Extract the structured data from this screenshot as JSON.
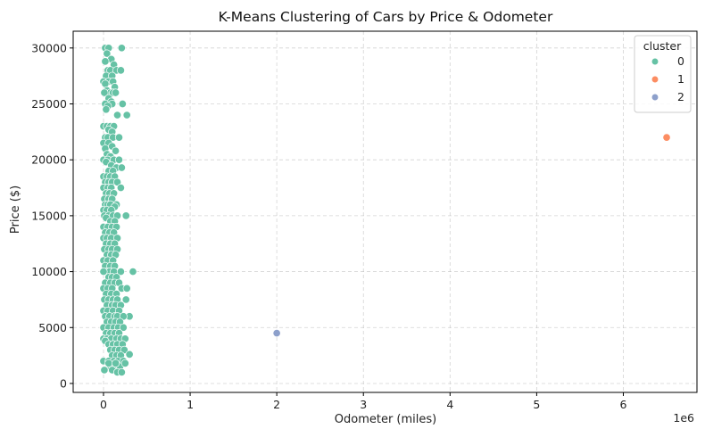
{
  "chart_data": {
    "type": "scatter",
    "title": "K-Means Clustering of Cars by Price & Odometer",
    "xlabel": "Odometer (miles)",
    "ylabel": "Price ($)",
    "x_offset_label": "1e6",
    "x_scale": 1000000,
    "xlim": [
      -350000,
      6850000
    ],
    "ylim": [
      -800,
      31500
    ],
    "xticks": [
      0,
      1000000,
      2000000,
      3000000,
      4000000,
      5000000,
      6000000
    ],
    "xtick_labels": [
      "0",
      "1",
      "2",
      "3",
      "4",
      "5",
      "6"
    ],
    "yticks": [
      0,
      5000,
      10000,
      15000,
      20000,
      25000,
      30000
    ],
    "ytick_labels": [
      "0",
      "5000",
      "10000",
      "15000",
      "20000",
      "25000",
      "30000"
    ],
    "grid": true,
    "legend": {
      "title": "cluster",
      "placement": "top-right",
      "entries": [
        {
          "label": "0",
          "color": "#66c2a5"
        },
        {
          "label": "1",
          "color": "#fc8d62"
        },
        {
          "label": "2",
          "color": "#8da0cb"
        }
      ]
    },
    "series": [
      {
        "name": "0",
        "color": "#66c2a5",
        "points": [
          [
            20000,
            30000
          ],
          [
            60000,
            30000
          ],
          [
            210000,
            30000
          ],
          [
            40000,
            29500
          ],
          [
            90000,
            29000
          ],
          [
            20000,
            28800
          ],
          [
            120000,
            28500
          ],
          [
            50000,
            28000
          ],
          [
            80000,
            28000
          ],
          [
            150000,
            28000
          ],
          [
            200000,
            28000
          ],
          [
            30000,
            27500
          ],
          [
            100000,
            27500
          ],
          [
            0,
            27000
          ],
          [
            60000,
            27000
          ],
          [
            110000,
            27000
          ],
          [
            20000,
            26800
          ],
          [
            130000,
            26500
          ],
          [
            40000,
            26200
          ],
          [
            80000,
            26000
          ],
          [
            110000,
            26000
          ],
          [
            140000,
            26000
          ],
          [
            10000,
            26000
          ],
          [
            60000,
            25500
          ],
          [
            90000,
            25200
          ],
          [
            20000,
            25000
          ],
          [
            100000,
            25000
          ],
          [
            50000,
            24800
          ],
          [
            160000,
            24000
          ],
          [
            270000,
            24000
          ],
          [
            220000,
            25000
          ],
          [
            30000,
            24500
          ],
          [
            0,
            23000
          ],
          [
            40000,
            23000
          ],
          [
            80000,
            23000
          ],
          [
            120000,
            23000
          ],
          [
            60000,
            22700
          ],
          [
            100000,
            22500
          ],
          [
            20000,
            22000
          ],
          [
            50000,
            22000
          ],
          [
            110000,
            22000
          ],
          [
            180000,
            22000
          ],
          [
            0,
            21500
          ],
          [
            60000,
            21500
          ],
          [
            20000,
            21000
          ],
          [
            100000,
            21200
          ],
          [
            140000,
            20800
          ],
          [
            40000,
            20500
          ],
          [
            80000,
            20300
          ],
          [
            0,
            20000
          ],
          [
            50000,
            20000
          ],
          [
            120000,
            20000
          ],
          [
            180000,
            20000
          ],
          [
            30000,
            19800
          ],
          [
            90000,
            19500
          ],
          [
            150000,
            19300
          ],
          [
            210000,
            19300
          ],
          [
            60000,
            19000
          ],
          [
            110000,
            19000
          ],
          [
            0,
            18500
          ],
          [
            40000,
            18500
          ],
          [
            80000,
            18500
          ],
          [
            130000,
            18500
          ],
          [
            20000,
            18000
          ],
          [
            60000,
            18000
          ],
          [
            100000,
            18000
          ],
          [
            160000,
            18000
          ],
          [
            0,
            17500
          ],
          [
            50000,
            17500
          ],
          [
            90000,
            17500
          ],
          [
            200000,
            17500
          ],
          [
            30000,
            17000
          ],
          [
            70000,
            17000
          ],
          [
            120000,
            17000
          ],
          [
            10000,
            16500
          ],
          [
            60000,
            16500
          ],
          [
            100000,
            16500
          ],
          [
            150000,
            16000
          ],
          [
            20000,
            16000
          ],
          [
            50000,
            16000
          ],
          [
            80000,
            16000
          ],
          [
            130000,
            15800
          ],
          [
            0,
            15500
          ],
          [
            40000,
            15500
          ],
          [
            90000,
            15500
          ],
          [
            10000,
            15000
          ],
          [
            60000,
            15000
          ],
          [
            110000,
            15000
          ],
          [
            160000,
            15000
          ],
          [
            260000,
            15000
          ],
          [
            30000,
            14800
          ],
          [
            80000,
            14500
          ],
          [
            130000,
            14500
          ],
          [
            0,
            14000
          ],
          [
            50000,
            14000
          ],
          [
            100000,
            14000
          ],
          [
            150000,
            14000
          ],
          [
            20000,
            13500
          ],
          [
            70000,
            13500
          ],
          [
            120000,
            13500
          ],
          [
            0,
            13000
          ],
          [
            40000,
            13000
          ],
          [
            90000,
            13000
          ],
          [
            160000,
            13000
          ],
          [
            30000,
            12500
          ],
          [
            80000,
            12500
          ],
          [
            130000,
            12500
          ],
          [
            10000,
            12000
          ],
          [
            60000,
            12000
          ],
          [
            100000,
            12000
          ],
          [
            160000,
            12000
          ],
          [
            40000,
            11500
          ],
          [
            90000,
            11500
          ],
          [
            140000,
            11500
          ],
          [
            0,
            11000
          ],
          [
            50000,
            11000
          ],
          [
            110000,
            11000
          ],
          [
            20000,
            10500
          ],
          [
            80000,
            10500
          ],
          [
            130000,
            10500
          ],
          [
            40000,
            10000
          ],
          [
            70000,
            10000
          ],
          [
            120000,
            10000
          ],
          [
            200000,
            10000
          ],
          [
            340000,
            10000
          ],
          [
            0,
            10000
          ],
          [
            60000,
            9500
          ],
          [
            100000,
            9500
          ],
          [
            150000,
            9500
          ],
          [
            20000,
            9000
          ],
          [
            80000,
            9000
          ],
          [
            130000,
            9000
          ],
          [
            180000,
            9000
          ],
          [
            0,
            8500
          ],
          [
            50000,
            8500
          ],
          [
            100000,
            8500
          ],
          [
            210000,
            8500
          ],
          [
            270000,
            8500
          ],
          [
            30000,
            8000
          ],
          [
            90000,
            8000
          ],
          [
            150000,
            8000
          ],
          [
            10000,
            7500
          ],
          [
            60000,
            7500
          ],
          [
            110000,
            7500
          ],
          [
            160000,
            7500
          ],
          [
            260000,
            7500
          ],
          [
            40000,
            7000
          ],
          [
            100000,
            7000
          ],
          [
            140000,
            7000
          ],
          [
            200000,
            7000
          ],
          [
            0,
            6500
          ],
          [
            50000,
            6500
          ],
          [
            110000,
            6500
          ],
          [
            180000,
            6500
          ],
          [
            20000,
            6000
          ],
          [
            70000,
            6000
          ],
          [
            130000,
            6000
          ],
          [
            160000,
            6000
          ],
          [
            300000,
            6000
          ],
          [
            230000,
            6000
          ],
          [
            40000,
            5500
          ],
          [
            90000,
            5500
          ],
          [
            140000,
            5500
          ],
          [
            190000,
            5500
          ],
          [
            0,
            5000
          ],
          [
            60000,
            5000
          ],
          [
            120000,
            5000
          ],
          [
            170000,
            5000
          ],
          [
            230000,
            5000
          ],
          [
            30000,
            4500
          ],
          [
            80000,
            4500
          ],
          [
            130000,
            4500
          ],
          [
            180000,
            4500
          ],
          [
            0,
            4000
          ],
          [
            40000,
            4000
          ],
          [
            90000,
            4000
          ],
          [
            150000,
            4000
          ],
          [
            200000,
            4000
          ],
          [
            250000,
            4000
          ],
          [
            20000,
            3800
          ],
          [
            60000,
            3500
          ],
          [
            110000,
            3500
          ],
          [
            160000,
            3500
          ],
          [
            220000,
            3500
          ],
          [
            80000,
            3000
          ],
          [
            130000,
            3000
          ],
          [
            180000,
            3000
          ],
          [
            240000,
            3000
          ],
          [
            100000,
            2500
          ],
          [
            150000,
            2500
          ],
          [
            200000,
            2500
          ],
          [
            300000,
            2600
          ],
          [
            0,
            2000
          ],
          [
            60000,
            2000
          ],
          [
            120000,
            2000
          ],
          [
            170000,
            2000
          ],
          [
            230000,
            2000
          ],
          [
            80000,
            1500
          ],
          [
            130000,
            1500
          ],
          [
            190000,
            1500
          ],
          [
            10000,
            1200
          ],
          [
            100000,
            1200
          ],
          [
            160000,
            1000
          ],
          [
            210000,
            1000
          ],
          [
            60000,
            1800
          ],
          [
            140000,
            1800
          ],
          [
            250000,
            1800
          ]
        ]
      },
      {
        "name": "1",
        "color": "#fc8d62",
        "points": [
          [
            6500000,
            22000
          ]
        ]
      },
      {
        "name": "2",
        "color": "#8da0cb",
        "points": [
          [
            2000000,
            4500
          ]
        ]
      }
    ]
  }
}
